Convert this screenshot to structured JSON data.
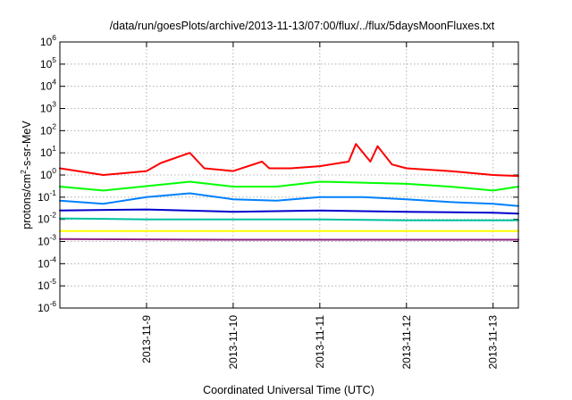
{
  "chart_data": {
    "type": "line",
    "title": "/data/run/goesPlots/archive/2013-11-13/07:00/flux/../flux/5daysMoonFluxes.txt",
    "xlabel": "Coordinated Universal Time (UTC)",
    "ylabel": "protons/cm2-s-sr-MeV",
    "ylabel_parts": {
      "base": "protons/cm",
      "sup": "2",
      "rest": "-s-sr-MeV"
    },
    "yscale": "log",
    "ylim": [
      1e-06,
      1000000.0
    ],
    "xlim": [
      "2013-11-08 00:00",
      "2013-11-13 07:00"
    ],
    "x_ticks": [
      "2013-11-9",
      "2013-11-10",
      "2013-11-11",
      "2013-11-12",
      "2013-11-13"
    ],
    "y_ticks": [
      {
        "base": "10",
        "exp": "-6"
      },
      {
        "base": "10",
        "exp": "-5"
      },
      {
        "base": "10",
        "exp": "-4"
      },
      {
        "base": "10",
        "exp": "-3"
      },
      {
        "base": "10",
        "exp": "-2"
      },
      {
        "base": "10",
        "exp": "-1"
      },
      {
        "base": "10",
        "exp": "0"
      },
      {
        "base": "10",
        "exp": "1"
      },
      {
        "base": "10",
        "exp": "2"
      },
      {
        "base": "10",
        "exp": "3"
      },
      {
        "base": "10",
        "exp": "4"
      },
      {
        "base": "10",
        "exp": "5"
      },
      {
        "base": "10",
        "exp": "6"
      }
    ],
    "grid": true,
    "legend": "none",
    "series": [
      {
        "color": "#ff0000",
        "x": [
          "2013-11-08 00:00",
          "2013-11-08 12:00",
          "2013-11-09 00:00",
          "2013-11-09 04:00",
          "2013-11-09 12:00",
          "2013-11-09 16:00",
          "2013-11-10 00:00",
          "2013-11-10 08:00",
          "2013-11-10 10:00",
          "2013-11-10 16:00",
          "2013-11-11 00:00",
          "2013-11-11 08:00",
          "2013-11-11 10:00",
          "2013-11-11 14:00",
          "2013-11-11 16:00",
          "2013-11-11 20:00",
          "2013-11-12 00:00",
          "2013-11-12 12:00",
          "2013-11-13 00:00",
          "2013-11-13 07:00"
        ],
        "y": [
          2.0,
          1.0,
          1.5,
          3.5,
          10.0,
          2.0,
          1.5,
          4.0,
          2.0,
          2.0,
          2.5,
          4.0,
          25.0,
          4.0,
          20.0,
          3.0,
          2.0,
          1.5,
          1.0,
          0.9
        ]
      },
      {
        "color": "#00ff00",
        "x": [
          "2013-11-08 00:00",
          "2013-11-08 12:00",
          "2013-11-09 12:00",
          "2013-11-10 00:00",
          "2013-11-10 12:00",
          "2013-11-11 00:00",
          "2013-11-11 12:00",
          "2013-11-12 00:00",
          "2013-11-12 12:00",
          "2013-11-13 00:00",
          "2013-11-13 07:00"
        ],
        "y": [
          0.3,
          0.2,
          0.5,
          0.3,
          0.3,
          0.5,
          0.45,
          0.4,
          0.3,
          0.2,
          0.3
        ]
      },
      {
        "color": "#0080ff",
        "x": [
          "2013-11-08 00:00",
          "2013-11-08 12:00",
          "2013-11-09 00:00",
          "2013-11-09 12:00",
          "2013-11-10 00:00",
          "2013-11-10 12:00",
          "2013-11-11 00:00",
          "2013-11-11 12:00",
          "2013-11-12 00:00",
          "2013-11-12 12:00",
          "2013-11-13 00:00",
          "2013-11-13 07:00"
        ],
        "y": [
          0.07,
          0.05,
          0.1,
          0.15,
          0.08,
          0.07,
          0.1,
          0.1,
          0.08,
          0.06,
          0.05,
          0.04
        ]
      },
      {
        "color": "#0000cd",
        "x": [
          "2013-11-08 00:00",
          "2013-11-09 00:00",
          "2013-11-10 00:00",
          "2013-11-11 00:00",
          "2013-11-12 00:00",
          "2013-11-13 00:00",
          "2013-11-13 07:00"
        ],
        "y": [
          0.025,
          0.028,
          0.022,
          0.025,
          0.022,
          0.02,
          0.018
        ]
      },
      {
        "color": "#00c0a0",
        "x": [
          "2013-11-08 00:00",
          "2013-11-09 00:00",
          "2013-11-10 00:00",
          "2013-11-11 00:00",
          "2013-11-12 00:00",
          "2013-11-13 00:00",
          "2013-11-13 07:00"
        ],
        "y": [
          0.011,
          0.01,
          0.01,
          0.01,
          0.009,
          0.009,
          0.009
        ]
      },
      {
        "color": "#ffff00",
        "x": [
          "2013-11-08 00:00",
          "2013-11-13 07:00"
        ],
        "y": [
          0.003,
          0.003
        ]
      },
      {
        "color": "#8b2080",
        "x": [
          "2013-11-08 00:00",
          "2013-11-10 00:00",
          "2013-11-12 00:00",
          "2013-11-13 07:00"
        ],
        "y": [
          0.0013,
          0.0012,
          0.0012,
          0.0012
        ]
      }
    ]
  }
}
